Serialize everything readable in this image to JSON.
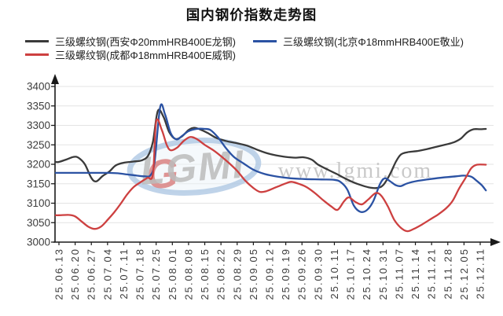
{
  "title": "国内钢价指数走势图",
  "legend": {
    "items": [
      {
        "label": "三级螺纹钢(西安Φ20mmHRB400E龙钢)",
        "color": "#3a3a3a"
      },
      {
        "label": "三级螺纹钢(北京Φ18mmHRB400E敬业)",
        "color": "#2b52a3"
      },
      {
        "label": "三级螺纹钢(成都Φ18mmHRB400E威钢)",
        "color": "#cd4040"
      }
    ]
  },
  "watermark": {
    "logo_text": "LGMI",
    "url_text": "www.lgmi.com",
    "logo_color": "#bcbcbc",
    "logo_accent_color": "#d97b7b",
    "ellipse_color": "#a9c4e2",
    "url_color": "#c9c9c9"
  },
  "chart_data": {
    "type": "line",
    "title": "国内钢价指数走势图",
    "xlabel": "",
    "ylabel": "",
    "ylim": [
      3000,
      3400
    ],
    "y_tick_step": 50,
    "y_ticks": [
      3000,
      3050,
      3100,
      3150,
      3200,
      3250,
      3300,
      3350,
      3400
    ],
    "grid": "horizontal",
    "legend_position": "top",
    "x_labels": [
      "25.06.13",
      "25.06.20",
      "25.06.27",
      "25.07.04",
      "25.07.11",
      "25.07.18",
      "25.07.25",
      "25.08.01",
      "25.08.08",
      "25.08.15",
      "25.08.22",
      "25.08.29",
      "25.09.05",
      "25.09.12",
      "25.09.19",
      "25.09.26",
      "25.09.30",
      "25.10.11",
      "25.10.17",
      "25.10.24",
      "25.10.31",
      "25.11.07",
      "25.11.14",
      "25.11.21",
      "25.11.28",
      "25.12.05",
      "25.12.11"
    ],
    "series": [
      {
        "name": "三级螺纹钢(西安Φ20mmHRB400E龙钢)",
        "color": "#3a3a3a",
        "points": [
          [
            -0.2,
            3206
          ],
          [
            0,
            3206
          ],
          [
            0.5,
            3213
          ],
          [
            0.9,
            3219
          ],
          [
            1.2,
            3217
          ],
          [
            1.6,
            3200
          ],
          [
            2.0,
            3165
          ],
          [
            2.3,
            3156
          ],
          [
            2.7,
            3170
          ],
          [
            3.1,
            3181
          ],
          [
            3.5,
            3197
          ],
          [
            4.0,
            3204
          ],
          [
            4.6,
            3207
          ],
          [
            5.1,
            3210
          ],
          [
            5.5,
            3222
          ],
          [
            5.8,
            3258
          ],
          [
            6.1,
            3337
          ],
          [
            6.45,
            3322
          ],
          [
            6.8,
            3283
          ],
          [
            7.2,
            3265
          ],
          [
            7.6,
            3272
          ],
          [
            8.0,
            3288
          ],
          [
            8.35,
            3294
          ],
          [
            8.8,
            3288
          ],
          [
            9.2,
            3280
          ],
          [
            9.7,
            3268
          ],
          [
            10.3,
            3260
          ],
          [
            11.0,
            3254
          ],
          [
            11.6,
            3248
          ],
          [
            12.2,
            3238
          ],
          [
            12.8,
            3229
          ],
          [
            13.4,
            3223
          ],
          [
            14.0,
            3219
          ],
          [
            14.6,
            3217
          ],
          [
            15.1,
            3218
          ],
          [
            15.6,
            3212
          ],
          [
            16.0,
            3199
          ],
          [
            16.6,
            3186
          ],
          [
            17.1,
            3176
          ],
          [
            17.6,
            3165
          ],
          [
            18.1,
            3155
          ],
          [
            18.6,
            3147
          ],
          [
            19.1,
            3141
          ],
          [
            19.6,
            3139
          ],
          [
            20.0,
            3146
          ],
          [
            20.4,
            3172
          ],
          [
            20.8,
            3207
          ],
          [
            21.1,
            3225
          ],
          [
            21.5,
            3231
          ],
          [
            22.1,
            3234
          ],
          [
            22.7,
            3239
          ],
          [
            23.3,
            3245
          ],
          [
            23.9,
            3251
          ],
          [
            24.4,
            3257
          ],
          [
            24.8,
            3266
          ],
          [
            25.2,
            3282
          ],
          [
            25.6,
            3290
          ],
          [
            26.0,
            3290
          ],
          [
            26.35,
            3291
          ]
        ]
      },
      {
        "name": "三级螺纹钢(北京Φ18mmHRB400E敬业)",
        "color": "#2b52a3",
        "points": [
          [
            -0.2,
            3178
          ],
          [
            0,
            3178
          ],
          [
            1,
            3178
          ],
          [
            2,
            3178
          ],
          [
            3,
            3178
          ],
          [
            3.6,
            3177
          ],
          [
            4.2,
            3174
          ],
          [
            4.8,
            3171
          ],
          [
            5.3,
            3169
          ],
          [
            5.65,
            3172
          ],
          [
            5.9,
            3205
          ],
          [
            6.25,
            3347
          ],
          [
            6.55,
            3328
          ],
          [
            6.9,
            3280
          ],
          [
            7.25,
            3264
          ],
          [
            7.6,
            3273
          ],
          [
            8.0,
            3285
          ],
          [
            8.5,
            3291
          ],
          [
            9.0,
            3291
          ],
          [
            9.35,
            3288
          ],
          [
            9.8,
            3270
          ],
          [
            10.3,
            3242
          ],
          [
            10.8,
            3219
          ],
          [
            11.4,
            3202
          ],
          [
            12.0,
            3186
          ],
          [
            12.7,
            3175
          ],
          [
            13.5,
            3168
          ],
          [
            14.3,
            3164
          ],
          [
            15.2,
            3162
          ],
          [
            16.2,
            3161
          ],
          [
            17.0,
            3160
          ],
          [
            17.4,
            3154
          ],
          [
            17.8,
            3135
          ],
          [
            18.2,
            3094
          ],
          [
            18.6,
            3078
          ],
          [
            19.0,
            3082
          ],
          [
            19.4,
            3105
          ],
          [
            19.8,
            3148
          ],
          [
            20.1,
            3164
          ],
          [
            20.45,
            3156
          ],
          [
            20.8,
            3146
          ],
          [
            21.1,
            3144
          ],
          [
            21.5,
            3151
          ],
          [
            22.1,
            3157
          ],
          [
            22.9,
            3162
          ],
          [
            23.7,
            3166
          ],
          [
            24.5,
            3169
          ],
          [
            25.0,
            3171
          ],
          [
            25.45,
            3168
          ],
          [
            25.8,
            3157
          ],
          [
            26.1,
            3146
          ],
          [
            26.35,
            3133
          ]
        ]
      },
      {
        "name": "三级螺纹钢(成都Φ18mmHRB400E威钢)",
        "color": "#cd4040",
        "points": [
          [
            -0.2,
            3069
          ],
          [
            0,
            3069
          ],
          [
            0.6,
            3070
          ],
          [
            1.0,
            3066
          ],
          [
            1.4,
            3053
          ],
          [
            1.8,
            3040
          ],
          [
            2.2,
            3034
          ],
          [
            2.6,
            3040
          ],
          [
            3.0,
            3057
          ],
          [
            3.4,
            3076
          ],
          [
            3.8,
            3098
          ],
          [
            4.2,
            3122
          ],
          [
            4.6,
            3141
          ],
          [
            5.0,
            3153
          ],
          [
            5.45,
            3165
          ],
          [
            5.8,
            3175
          ],
          [
            6.0,
            3310
          ],
          [
            6.35,
            3288
          ],
          [
            6.65,
            3250
          ],
          [
            6.9,
            3236
          ],
          [
            7.3,
            3243
          ],
          [
            7.7,
            3260
          ],
          [
            8.1,
            3270
          ],
          [
            8.5,
            3265
          ],
          [
            9.0,
            3250
          ],
          [
            9.5,
            3237
          ],
          [
            10.0,
            3221
          ],
          [
            10.5,
            3203
          ],
          [
            11.0,
            3183
          ],
          [
            11.5,
            3158
          ],
          [
            12.0,
            3139
          ],
          [
            12.4,
            3129
          ],
          [
            12.8,
            3131
          ],
          [
            13.4,
            3141
          ],
          [
            14.0,
            3151
          ],
          [
            14.35,
            3155
          ],
          [
            14.8,
            3150
          ],
          [
            15.3,
            3141
          ],
          [
            15.8,
            3126
          ],
          [
            16.3,
            3108
          ],
          [
            16.8,
            3092
          ],
          [
            17.2,
            3083
          ],
          [
            17.6,
            3105
          ],
          [
            17.9,
            3115
          ],
          [
            18.3,
            3103
          ],
          [
            18.7,
            3097
          ],
          [
            19.1,
            3110
          ],
          [
            19.55,
            3126
          ],
          [
            19.9,
            3119
          ],
          [
            20.3,
            3092
          ],
          [
            20.7,
            3057
          ],
          [
            21.1,
            3037
          ],
          [
            21.5,
            3028
          ],
          [
            21.9,
            3034
          ],
          [
            22.4,
            3045
          ],
          [
            22.9,
            3058
          ],
          [
            23.4,
            3071
          ],
          [
            23.9,
            3087
          ],
          [
            24.3,
            3106
          ],
          [
            24.7,
            3138
          ],
          [
            25.1,
            3165
          ],
          [
            25.45,
            3190
          ],
          [
            25.8,
            3199
          ],
          [
            26.35,
            3199
          ]
        ]
      }
    ],
    "style": {
      "grid_color": "#e3e3e3",
      "axis_color": "#1a1a1a",
      "label_color": "#3d3d3d"
    }
  }
}
